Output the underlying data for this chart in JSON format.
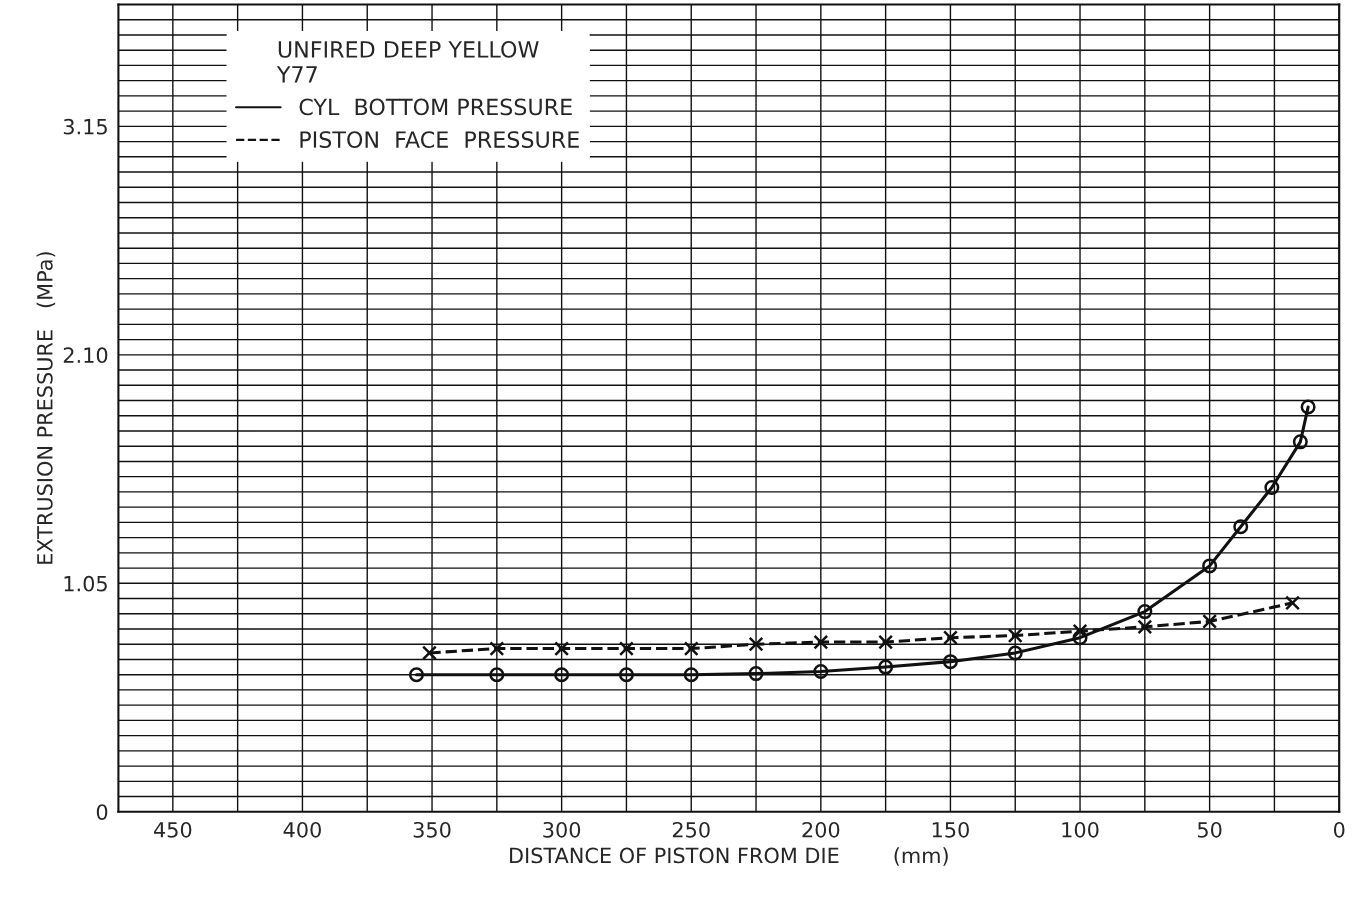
{
  "chart_data": {
    "type": "line",
    "xlabel": "DISTANCE OF PISTON FROM DIE        (mm)",
    "ylabel": "EXTRUSION PRESSURE   (MPa)",
    "legend_title": "UNFIRED DEEP YELLOW\nY77",
    "series": [
      {
        "name": "CYL  BOTTOM PRESSURE",
        "color": "#111111",
        "line_style": "solid",
        "marker": "circle",
        "x": [
          356,
          325,
          300,
          275,
          250,
          225,
          200,
          175,
          150,
          125,
          100,
          75,
          50,
          38,
          26,
          15,
          12
        ],
        "values": [
          0.63,
          0.63,
          0.63,
          0.63,
          0.63,
          0.635,
          0.645,
          0.665,
          0.69,
          0.73,
          0.8,
          0.92,
          1.13,
          1.31,
          1.49,
          1.7,
          1.86
        ]
      },
      {
        "name": "PISTON  FACE  PRESSURE",
        "color": "#111111",
        "line_style": "dashed",
        "marker": "cross",
        "x": [
          351,
          325,
          300,
          275,
          250,
          225,
          200,
          175,
          150,
          125,
          100,
          75,
          50,
          18
        ],
        "values": [
          0.73,
          0.75,
          0.75,
          0.75,
          0.75,
          0.77,
          0.78,
          0.78,
          0.8,
          0.81,
          0.83,
          0.85,
          0.875,
          0.96
        ]
      }
    ],
    "xlim": [
      471,
      0
    ],
    "xticks": [
      450,
      400,
      350,
      300,
      250,
      200,
      150,
      100,
      50,
      0
    ],
    "ylim": [
      0,
      3.71
    ],
    "yticks": [
      0,
      1.05,
      {
        "value": 2.1,
        "label": "2.10"
      },
      3.15
    ],
    "grid": true,
    "legend": "top left"
  }
}
